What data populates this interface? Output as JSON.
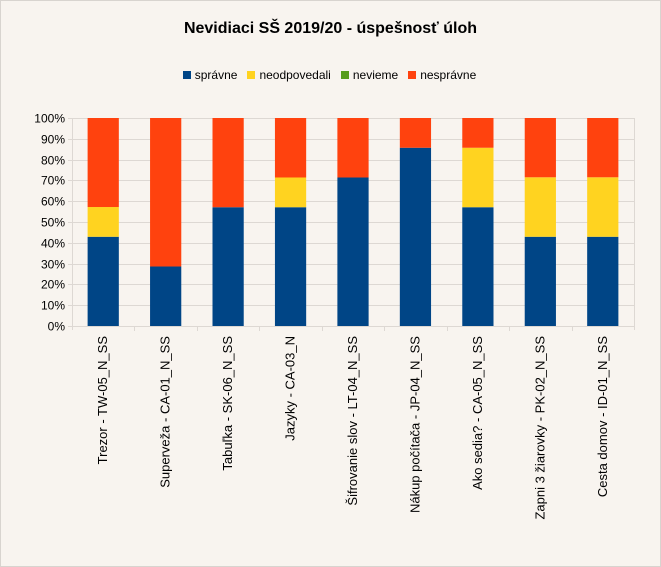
{
  "chart_data": {
    "type": "bar",
    "stacked": true,
    "title": "Nevidiaci SŠ 2019/20 - úspešnosť úloh",
    "xlabel": "",
    "ylabel": "",
    "ylim": [
      0,
      100
    ],
    "yticks": [
      "0%",
      "10%",
      "20%",
      "30%",
      "40%",
      "50%",
      "60%",
      "70%",
      "80%",
      "90%",
      "100%"
    ],
    "grid": true,
    "legend_position": "top",
    "categories": [
      "Trezor - TW-05_N_SS",
      "Superveža - CA-01_N_SS",
      "Tabuľka - SK-06_N_SS",
      "Jazyky - CA-03_N",
      "Šifrovanie slov - LT-04_N_SS",
      "Nákup počítača - JP-04_N_SS",
      "Ako sedia? - CA-05_N_SS",
      "Zapni 3 žiarovky - PK-02_N_SS",
      "Cesta domov - ID-01_N_SS"
    ],
    "series": [
      {
        "name": "správne",
        "color": "#004586",
        "values": [
          42.9,
          28.6,
          57.1,
          57.1,
          71.4,
          85.7,
          57.1,
          42.9,
          42.9
        ]
      },
      {
        "name": "neodpovedali",
        "color": "#ffd320",
        "values": [
          14.3,
          0,
          0,
          14.3,
          0,
          0,
          28.6,
          28.6,
          28.6
        ]
      },
      {
        "name": "nevieme",
        "color": "#579d1c",
        "values": [
          0,
          0,
          0,
          0,
          0,
          0,
          0,
          0,
          0
        ]
      },
      {
        "name": "nesprávne",
        "color": "#ff420e",
        "values": [
          42.8,
          71.4,
          42.9,
          28.6,
          28.6,
          14.3,
          14.3,
          28.5,
          28.5
        ]
      }
    ]
  }
}
